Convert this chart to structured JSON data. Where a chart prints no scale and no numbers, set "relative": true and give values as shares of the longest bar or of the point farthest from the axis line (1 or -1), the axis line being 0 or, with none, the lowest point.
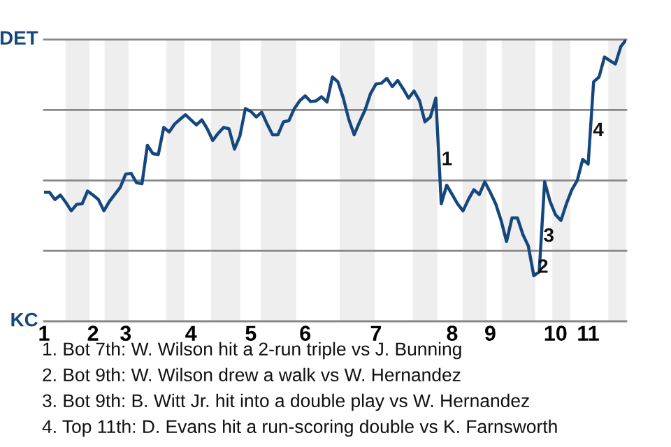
{
  "chart_data": {
    "type": "line",
    "relative": true,
    "categories": [
      "1",
      null,
      null,
      null,
      null,
      null,
      null,
      null,
      null,
      "2",
      null,
      null,
      null,
      null,
      null,
      "3",
      null,
      null,
      null,
      null,
      null,
      null,
      null,
      null,
      null,
      null,
      null,
      "4",
      null,
      null,
      null,
      null,
      null,
      null,
      null,
      null,
      null,
      null,
      "5",
      null,
      null,
      null,
      null,
      null,
      null,
      null,
      null,
      null,
      "6",
      null,
      null,
      null,
      null,
      null,
      null,
      null,
      null,
      null,
      null,
      null,
      null,
      "7",
      null,
      null,
      null,
      null,
      null,
      null,
      null,
      null,
      null,
      null,
      null,
      null,
      null,
      "8",
      null,
      null,
      null,
      null,
      null,
      null,
      "9",
      null,
      null,
      null,
      null,
      null,
      null,
      null,
      null,
      null,
      null,
      null,
      "10",
      null,
      null,
      null,
      null,
      null,
      "11",
      null,
      null,
      null,
      null,
      null,
      null,
      null
    ],
    "series": [
      {
        "color": "#15477f",
        "values": [
          0.458,
          0.458,
          0.432,
          0.448,
          0.422,
          0.392,
          0.415,
          0.417,
          0.462,
          0.448,
          0.432,
          0.392,
          0.425,
          0.45,
          0.475,
          0.522,
          0.525,
          0.492,
          0.488,
          0.625,
          0.595,
          0.592,
          0.688,
          0.672,
          0.7,
          0.717,
          0.733,
          0.715,
          0.697,
          0.715,
          0.683,
          0.642,
          0.667,
          0.688,
          0.683,
          0.611,
          0.658,
          0.755,
          0.745,
          0.725,
          0.742,
          0.7,
          0.662,
          0.662,
          0.708,
          0.712,
          0.755,
          0.783,
          0.8,
          0.78,
          0.782,
          0.797,
          0.778,
          0.867,
          0.85,
          0.792,
          0.717,
          0.662,
          0.708,
          0.75,
          0.808,
          0.842,
          0.845,
          0.862,
          0.833,
          0.855,
          0.825,
          0.792,
          0.817,
          0.783,
          0.708,
          0.725,
          0.792,
          0.417,
          0.483,
          0.45,
          0.417,
          0.392,
          0.433,
          0.467,
          0.45,
          0.495,
          0.458,
          0.417,
          0.358,
          0.283,
          0.367,
          0.367,
          0.308,
          0.267,
          0.162,
          0.175,
          0.495,
          0.425,
          0.378,
          0.358,
          0.417,
          0.467,
          0.5,
          0.575,
          0.558,
          0.85,
          0.867,
          0.938,
          0.925,
          0.913,
          0.975,
          1.0
        ]
      }
    ],
    "marker": "none",
    "line_style": "solid",
    "ref_lines": [
      {
        "axis": "y",
        "value": 1,
        "label": "DET",
        "color": "#888888"
      },
      {
        "axis": "y",
        "value": 0.75,
        "color": "#888888"
      },
      {
        "axis": "y",
        "value": 0.5,
        "color": "#888888"
      },
      {
        "axis": "y",
        "value": 0.25,
        "color": "#888888"
      },
      {
        "axis": "y",
        "value": 0,
        "label": "KC",
        "color": "#888888"
      }
    ],
    "annotations": [
      {
        "text": "1",
        "y": 0.572
      },
      {
        "text": "2",
        "y": 0.19
      },
      {
        "text": "3",
        "y": 0.3
      },
      {
        "text": "4",
        "y": 0.675
      },
      "1. Bot 7th: W. Wilson hit a 2-run triple vs J. Bunning",
      "2. Bot 9th: W. Wilson drew a walk vs W. Hernandez",
      "3. Bot 9th: B. Witt Jr. hit into a double play vs W. Hernandez",
      "4. Top 11th: D. Evans hit a run-scoring double vs K. Farnsworth"
    ]
  }
}
